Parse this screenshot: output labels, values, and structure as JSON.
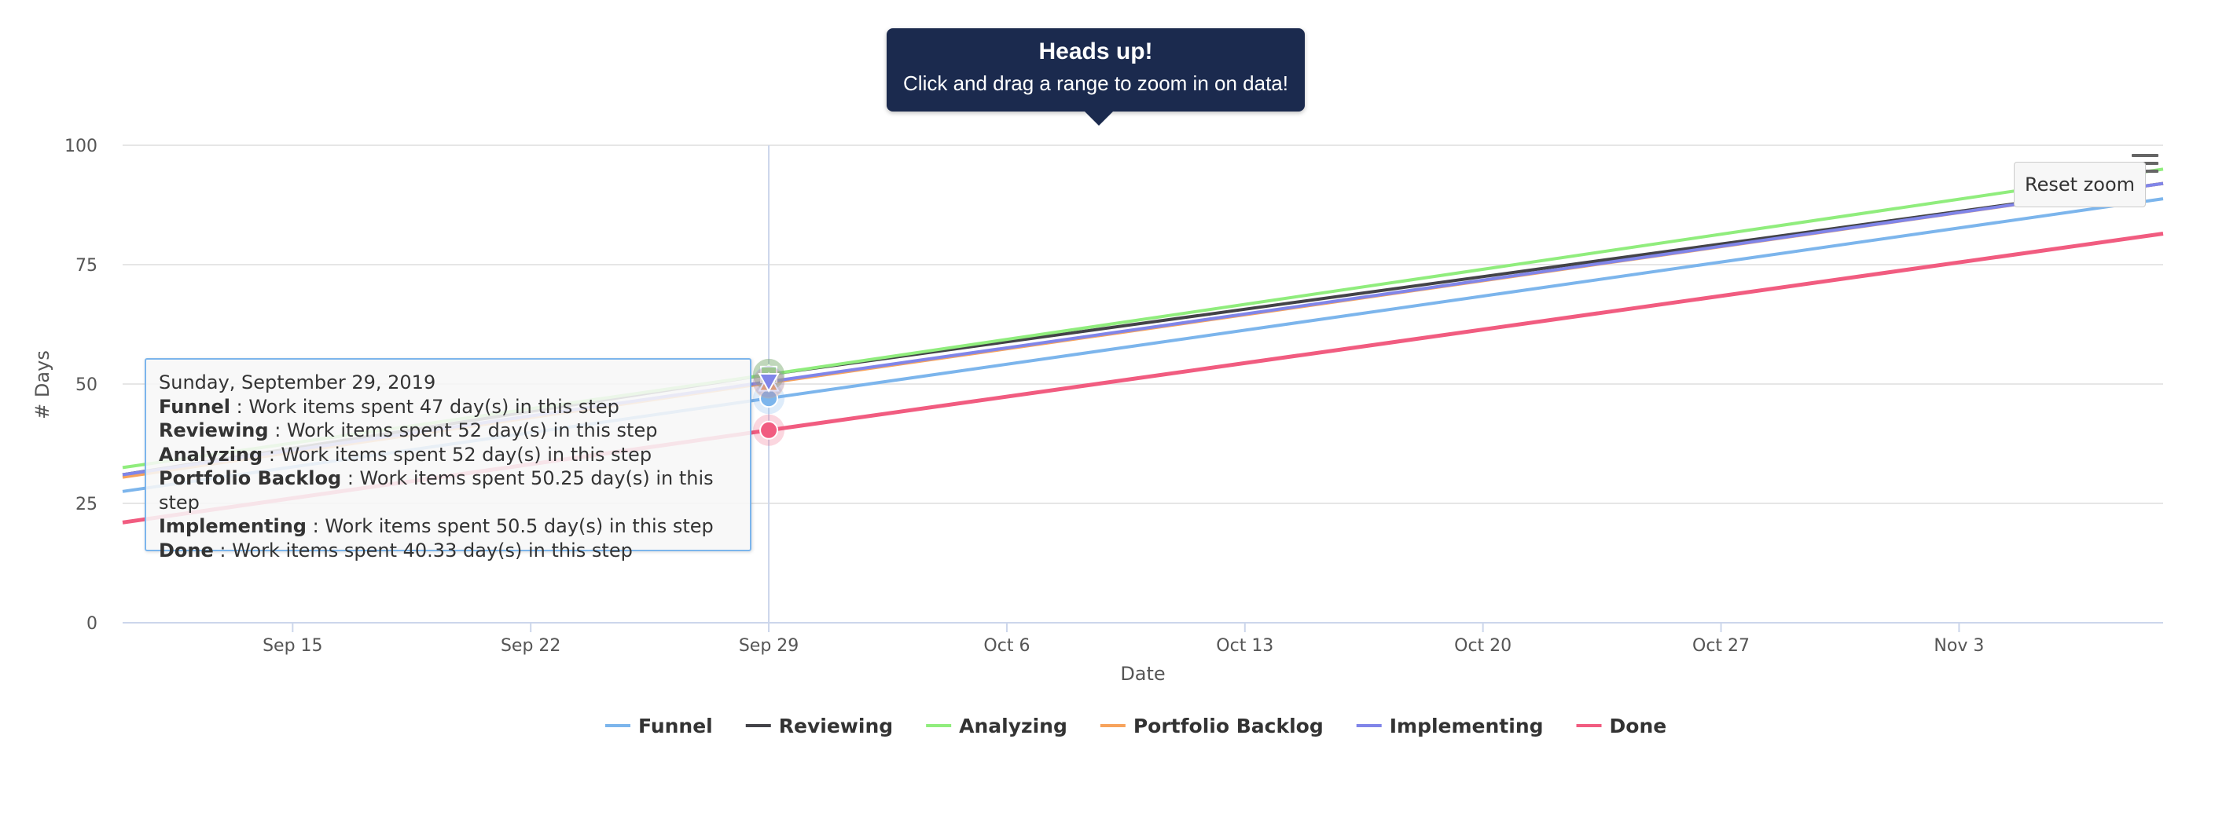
{
  "chart_data": {
    "type": "line",
    "title": "",
    "xlabel": "Date",
    "ylabel": "# Days",
    "ylim": [
      0,
      100
    ],
    "y_ticks": [
      0,
      25,
      50,
      75,
      100
    ],
    "x_ticks": [
      "Sep 15",
      "Sep 22",
      "Sep 29",
      "Oct 6",
      "Oct 13",
      "Oct 20",
      "Oct 27",
      "Nov 3"
    ],
    "x_tick_dates": [
      "2019-09-15",
      "2019-09-22",
      "2019-09-29",
      "2019-10-06",
      "2019-10-13",
      "2019-10-20",
      "2019-10-27",
      "2019-11-03"
    ],
    "xlim": [
      "2019-09-10",
      "2019-11-09"
    ],
    "grid": true,
    "legend_position": "bottom-center",
    "series": [
      {
        "name": "Funnel",
        "color": "#7cb5ec",
        "points": [
          [
            "2019-09-10",
            27.5
          ],
          [
            "2019-09-29",
            47
          ],
          [
            "2019-11-09",
            88.8
          ]
        ]
      },
      {
        "name": "Reviewing",
        "color": "#434348",
        "points": [
          [
            "2019-09-10",
            31
          ],
          [
            "2019-09-29",
            52
          ],
          [
            "2019-11-09",
            92
          ]
        ]
      },
      {
        "name": "Analyzing",
        "color": "#90ed7d",
        "points": [
          [
            "2019-09-10",
            32.5
          ],
          [
            "2019-09-29",
            52
          ],
          [
            "2019-11-09",
            95
          ]
        ]
      },
      {
        "name": "Portfolio Backlog",
        "color": "#f7a35c",
        "points": [
          [
            "2019-09-10",
            30.5
          ],
          [
            "2019-09-29",
            50.25
          ],
          [
            "2019-11-09",
            92
          ]
        ]
      },
      {
        "name": "Implementing",
        "color": "#8085e9",
        "points": [
          [
            "2019-09-10",
            31
          ],
          [
            "2019-09-29",
            50.5
          ],
          [
            "2019-11-09",
            92
          ]
        ]
      },
      {
        "name": "Done",
        "color": "#f15c80",
        "points": [
          [
            "2019-09-10",
            21
          ],
          [
            "2019-09-29",
            40.33
          ],
          [
            "2019-11-09",
            81.5
          ]
        ]
      }
    ],
    "crosshair_date": "2019-09-29"
  },
  "legend": {
    "items": [
      {
        "label": "Funnel",
        "color": "#7cb5ec"
      },
      {
        "label": "Reviewing",
        "color": "#434348"
      },
      {
        "label": "Analyzing",
        "color": "#90ed7d"
      },
      {
        "label": "Portfolio Backlog",
        "color": "#f7a35c"
      },
      {
        "label": "Implementing",
        "color": "#8085e9"
      },
      {
        "label": "Done",
        "color": "#f15c80"
      }
    ]
  },
  "notice": {
    "title": "Heads up!",
    "message": "Click and drag a range to zoom in on data!"
  },
  "toolbar": {
    "reset_zoom_label": "Reset zoom",
    "menu_icon": "hamburger-menu-icon"
  },
  "tooltip": {
    "header": "Sunday, September 29, 2019",
    "rows": [
      {
        "series": "Funnel",
        "text": " : Work items spent 47 day(s) in this step"
      },
      {
        "series": "Reviewing",
        "text": " : Work items spent 52 day(s) in this step"
      },
      {
        "series": "Analyzing",
        "text": " : Work items spent 52 day(s) in this step"
      },
      {
        "series": "Portfolio Backlog",
        "text": " : Work items spent 50.25 day(s) in this step"
      },
      {
        "series": "Implementing",
        "text": " : Work items spent 50.5 day(s) in this step"
      },
      {
        "series": "Done",
        "text": " : Work items spent 40.33 day(s) in this step"
      }
    ]
  }
}
